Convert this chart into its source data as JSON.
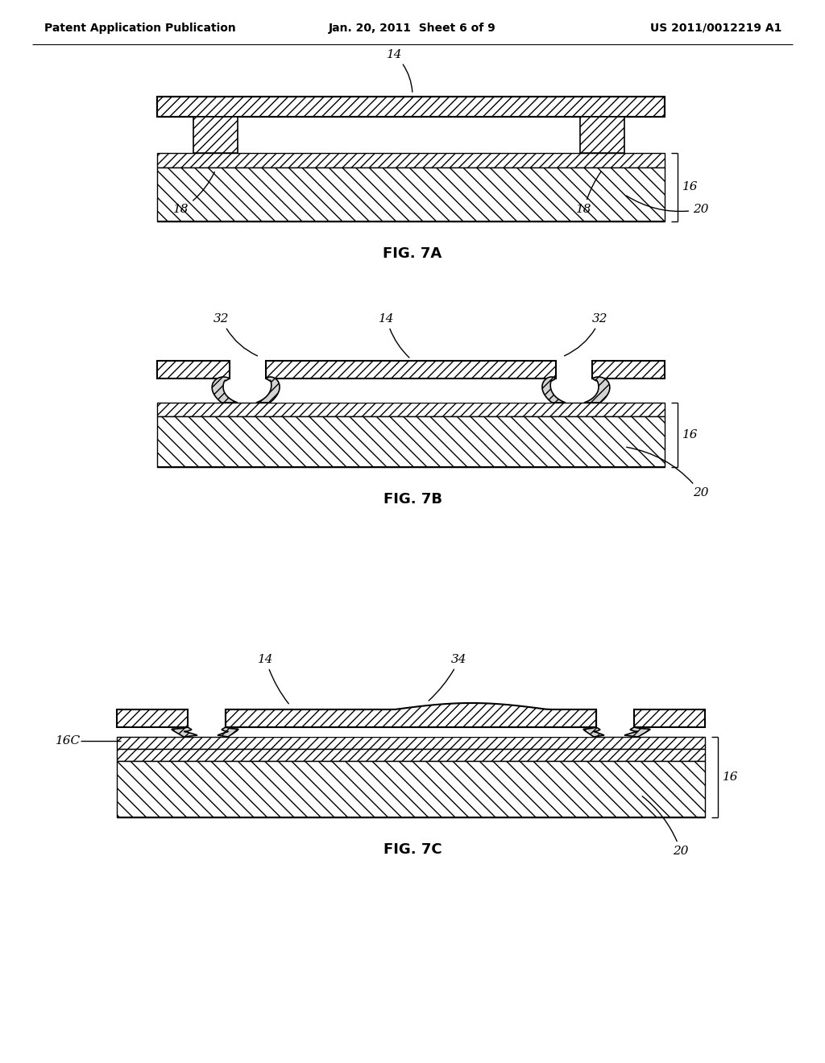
{
  "bg_color": "#ffffff",
  "fig_width": 10.24,
  "fig_height": 13.2,
  "header_left": "Patent Application Publication",
  "header_center": "Jan. 20, 2011  Sheet 6 of 9",
  "header_right": "US 2011/0012219 A1",
  "header_fontsize": 10
}
